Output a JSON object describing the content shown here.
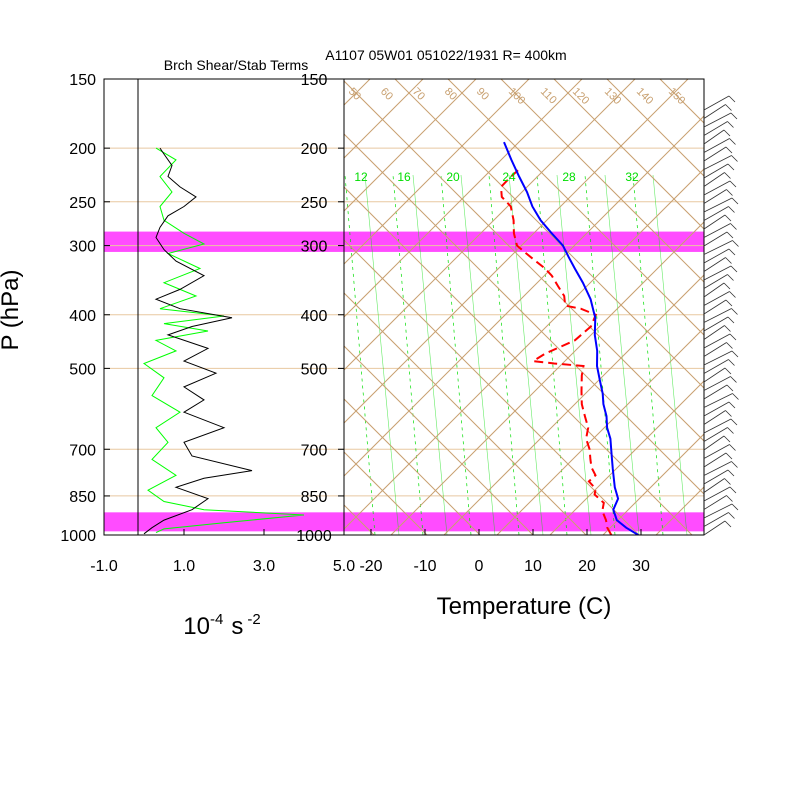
{
  "titles": {
    "left_title": "Brch Shear/Stab Terms",
    "main_title": "A1107 05W01 051022/1931 R= 400km"
  },
  "colors": {
    "temperature": "#0000ff",
    "dewpoint": "#ff0000",
    "shear_term": "#000000",
    "stab_term": "#00ff00",
    "highlight_band": "#ff00ff",
    "skewt_grid": "#c8a070",
    "mixing_ratio": "#00dd00",
    "isobar": "#e8c8a0",
    "wind_barb": "#333333"
  },
  "chart_data": [
    {
      "type": "line",
      "name": "shear-stability-profile",
      "title": "Brch Shear/Stab Terms",
      "ylabel": "P (hPa)",
      "xlabel_base": "10",
      "xlabel_exp": "-4",
      "xlabel_unit": "s",
      "xlabel_exp2": "-2",
      "y_scale": "log",
      "ylim": [
        1000,
        150
      ],
      "xlim": [
        -1.0,
        5.0
      ],
      "x_ticks": [
        "-1.0",
        "1.0",
        "3.0",
        "5.0"
      ],
      "x_tick_values": [
        -1.0,
        1.0,
        3.0,
        5.0
      ],
      "y_ticks": [
        "150",
        "200",
        "250",
        "300",
        "400",
        "500",
        "700",
        "850",
        "1000"
      ],
      "y_tick_values": [
        150,
        200,
        250,
        300,
        400,
        500,
        700,
        850,
        1000
      ],
      "highlight_bands_hPa": [
        [
          283,
          308
        ],
        [
          910,
          985
        ]
      ],
      "series": [
        {
          "key": "shear",
          "points": [
            [
              0.4,
              200
            ],
            [
              0.5,
              205
            ],
            [
              0.7,
              215
            ],
            [
              0.6,
              225
            ],
            [
              0.9,
              235
            ],
            [
              1.3,
              245
            ],
            [
              1.0,
              255
            ],
            [
              0.6,
              265
            ],
            [
              0.4,
              278
            ],
            [
              0.3,
              290
            ],
            [
              0.5,
              305
            ],
            [
              0.8,
              320
            ],
            [
              1.5,
              340
            ],
            [
              0.9,
              360
            ],
            [
              0.3,
              375
            ],
            [
              0.9,
              390
            ],
            [
              2.2,
              405
            ],
            [
              1.2,
              420
            ],
            [
              0.6,
              435
            ],
            [
              1.6,
              460
            ],
            [
              1.0,
              485
            ],
            [
              1.8,
              510
            ],
            [
              1.0,
              540
            ],
            [
              1.5,
              570
            ],
            [
              1.0,
              600
            ],
            [
              2.0,
              640
            ],
            [
              1.0,
              680
            ],
            [
              1.2,
              720
            ],
            [
              2.7,
              765
            ],
            [
              1.5,
              790
            ],
            [
              0.8,
              820
            ],
            [
              1.6,
              860
            ],
            [
              1.2,
              900
            ],
            [
              0.5,
              940
            ],
            [
              0.2,
              970
            ],
            [
              0.0,
              995
            ]
          ]
        },
        {
          "key": "stability",
          "points": [
            [
              0.3,
              200
            ],
            [
              0.8,
              210
            ],
            [
              0.4,
              225
            ],
            [
              0.7,
              240
            ],
            [
              0.4,
              255
            ],
            [
              0.5,
              270
            ],
            [
              1.0,
              285
            ],
            [
              1.5,
              298
            ],
            [
              0.6,
              310
            ],
            [
              1.4,
              330
            ],
            [
              0.5,
              350
            ],
            [
              1.3,
              370
            ],
            [
              0.4,
              390
            ],
            [
              2.0,
              402
            ],
            [
              0.5,
              415
            ],
            [
              1.6,
              428
            ],
            [
              0.3,
              445
            ],
            [
              0.8,
              465
            ],
            [
              0.0,
              490
            ],
            [
              0.5,
              520
            ],
            [
              0.2,
              560
            ],
            [
              0.9,
              600
            ],
            [
              0.3,
              640
            ],
            [
              0.6,
              680
            ],
            [
              0.2,
              730
            ],
            [
              0.8,
              780
            ],
            [
              0.1,
              830
            ],
            [
              0.5,
              870
            ],
            [
              1.5,
              900
            ],
            [
              4.0,
              920
            ],
            [
              2.0,
              950
            ],
            [
              0.5,
              975
            ],
            [
              0.3,
              990
            ]
          ]
        }
      ]
    },
    {
      "type": "line",
      "name": "skew-t-log-p",
      "title": "A1107 05W01 051022/1931 R= 400km",
      "xlabel": "Temperature (C)",
      "y_scale": "log",
      "ylim": [
        1000,
        150
      ],
      "xlim": [
        -25,
        40
      ],
      "x_ticks": [
        "-20",
        "-10",
        "0",
        "10",
        "20",
        "30"
      ],
      "x_tick_values": [
        -20,
        -10,
        0,
        10,
        20,
        30
      ],
      "y_ticks": [
        "150",
        "200",
        "250",
        "300",
        "400",
        "500",
        "700",
        "850",
        "1000"
      ],
      "y_tick_values": [
        150,
        200,
        250,
        300,
        400,
        500,
        700,
        850,
        1000
      ],
      "highlight_bands_hPa": [
        [
          283,
          308
        ],
        [
          910,
          985
        ]
      ],
      "mixing_ratio_labels": [
        "12",
        "16",
        "20",
        "24",
        "28",
        "32"
      ],
      "theta_labels": [
        "50",
        "60",
        "70",
        "80",
        "90",
        "100",
        "110",
        "120",
        "130",
        "140",
        "150"
      ],
      "series": [
        {
          "key": "temperature",
          "points": [
            [
              29.5,
              1000
            ],
            [
              27,
              970
            ],
            [
              25,
              940
            ],
            [
              24,
              900
            ],
            [
              24.5,
              860
            ],
            [
              23.5,
              820
            ],
            [
              23,
              790
            ],
            [
              22.5,
              760
            ],
            [
              22,
              730
            ],
            [
              21.5,
              700
            ],
            [
              21,
              670
            ],
            [
              20,
              640
            ],
            [
              19.5,
              610
            ],
            [
              18.5,
              580
            ],
            [
              18,
              555
            ],
            [
              17,
              525
            ],
            [
              16,
              495
            ],
            [
              15.5,
              465
            ],
            [
              14.5,
              435
            ],
            [
              14,
              405
            ],
            [
              13.5,
              395
            ],
            [
              12.5,
              375
            ],
            [
              10.5,
              350
            ],
            [
              8.5,
              330
            ],
            [
              7,
              315
            ],
            [
              5.5,
              300
            ],
            [
              3,
              285
            ],
            [
              0.5,
              270
            ],
            [
              -1.5,
              255
            ],
            [
              -3,
              240
            ],
            [
              -5,
              225
            ],
            [
              -7,
              210
            ],
            [
              -9,
              195
            ]
          ]
        },
        {
          "key": "dewpoint",
          "points": [
            [
              24.5,
              1000
            ],
            [
              23.5,
              970
            ],
            [
              23,
              940
            ],
            [
              22,
              905
            ],
            [
              22,
              875
            ],
            [
              20,
              845
            ],
            [
              20,
              825
            ],
            [
              18.5,
              800
            ],
            [
              19.5,
              780
            ],
            [
              18.5,
              755
            ],
            [
              18,
              730
            ],
            [
              17.5,
              700
            ],
            [
              16.5,
              670
            ],
            [
              16.5,
              640
            ],
            [
              15.5,
              610
            ],
            [
              14.5,
              580
            ],
            [
              14,
              550
            ],
            [
              13.5,
              515
            ],
            [
              13.5,
              495
            ],
            [
              8,
              490
            ],
            [
              4,
              485
            ],
            [
              6,
              470
            ],
            [
              11,
              445
            ],
            [
              13.5,
              420
            ],
            [
              14,
              400
            ],
            [
              11,
              390
            ],
            [
              8,
              385
            ],
            [
              7.5,
              370
            ],
            [
              6,
              355
            ],
            [
              4.5,
              340
            ],
            [
              3,
              330
            ],
            [
              1,
              320
            ],
            [
              -1,
              310
            ],
            [
              -3,
              300
            ],
            [
              -4,
              285
            ],
            [
              -4.5,
              270
            ],
            [
              -5.5,
              255
            ],
            [
              -7.5,
              245
            ],
            [
              -8,
              235
            ],
            [
              -6.5,
              225
            ],
            [
              -5,
              217
            ]
          ]
        }
      ]
    }
  ]
}
